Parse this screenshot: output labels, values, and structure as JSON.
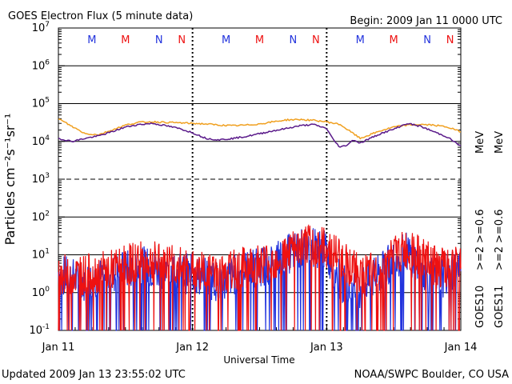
{
  "header": {
    "title": "GOES Electron Flux (5 minute data)",
    "begin": "Begin: 2009 Jan 11 0000 UTC"
  },
  "footer": {
    "updated": "Updated 2009 Jan 13 23:55:02 UTC",
    "credit": "NOAA/SWPC Boulder, CO USA"
  },
  "colors": {
    "goes10_low": "#2233dd",
    "goes10_high": "#5a1a8a",
    "goes11_low": "#ee1111",
    "goes11_high": "#f0a020"
  },
  "chart_data": {
    "type": "line",
    "title": "GOES Electron Flux (5 minute data)",
    "xlabel": "Universal Time",
    "ylabel": "Particles cm⁻²s⁻¹sr⁻¹",
    "y_scale": "log",
    "ylim": [
      0.1,
      10000000
    ],
    "x_ticks": [
      "Jan 11",
      "Jan 12",
      "Jan 13",
      "Jan 14"
    ],
    "y_ticks": [
      {
        "base": "10",
        "exp": "7"
      },
      {
        "base": "10",
        "exp": "6"
      },
      {
        "base": "10",
        "exp": "5"
      },
      {
        "base": "10",
        "exp": "4"
      },
      {
        "base": "10",
        "exp": "3"
      },
      {
        "base": "10",
        "exp": "2"
      },
      {
        "base": "10",
        "exp": "1"
      },
      {
        "base": "10",
        "exp": "0"
      },
      {
        "base": "10",
        "exp": "-1"
      }
    ],
    "grid": true,
    "legend_right": [
      {
        "satellite": "GOES10",
        "low": ">=2",
        "high": ">=0.6",
        "low_color": "#2233dd",
        "high_color": "#5a1a8a"
      },
      {
        "satellite": "GOES11",
        "low": ">=2",
        "high": ">=0.6",
        "low_color": "#ee1111",
        "high_color": "#f0a020"
      }
    ],
    "unit_label": "MeV",
    "mn_markers": [
      {
        "letter": "M",
        "day": 0.25,
        "color": "#2233dd"
      },
      {
        "letter": "M",
        "day": 0.5,
        "color": "#ee1111"
      },
      {
        "letter": "N",
        "day": 0.75,
        "color": "#2233dd"
      },
      {
        "letter": "N",
        "day": 0.92,
        "color": "#ee1111"
      },
      {
        "letter": "M",
        "day": 1.25,
        "color": "#2233dd"
      },
      {
        "letter": "M",
        "day": 1.5,
        "color": "#ee1111"
      },
      {
        "letter": "N",
        "day": 1.75,
        "color": "#2233dd"
      },
      {
        "letter": "N",
        "day": 1.92,
        "color": "#ee1111"
      },
      {
        "letter": "M",
        "day": 2.25,
        "color": "#2233dd"
      },
      {
        "letter": "M",
        "day": 2.5,
        "color": "#ee1111"
      },
      {
        "letter": "N",
        "day": 2.75,
        "color": "#2233dd"
      },
      {
        "letter": "N",
        "day": 2.92,
        "color": "#ee1111"
      }
    ],
    "series": [
      {
        "name": "GOES10 >=0.6 MeV",
        "color": "#5a1a8a",
        "x": [
          0,
          0.1,
          0.2,
          0.3,
          0.4,
          0.5,
          0.6,
          0.7,
          0.8,
          0.9,
          1.0,
          1.1,
          1.2,
          1.3,
          1.4,
          1.5,
          1.6,
          1.7,
          1.8,
          1.9,
          2.0,
          2.05,
          2.1,
          2.15,
          2.2,
          2.25,
          2.3,
          2.4,
          2.5,
          2.6,
          2.7,
          2.8,
          2.9,
          3.0
        ],
        "values": [
          12000,
          10000,
          12000,
          14000,
          18000,
          24000,
          28000,
          30000,
          26000,
          22000,
          17000,
          12000,
          11000,
          12000,
          13500,
          16000,
          19000,
          22000,
          26000,
          28000,
          22000,
          11000,
          7000,
          8000,
          11000,
          9000,
          11000,
          16000,
          21000,
          30000,
          25000,
          18000,
          13000,
          7500
        ]
      },
      {
        "name": "GOES11 >=0.6 MeV",
        "color": "#f0a020",
        "x": [
          0,
          0.1,
          0.2,
          0.3,
          0.4,
          0.5,
          0.6,
          0.7,
          0.8,
          0.9,
          1.0,
          1.1,
          1.2,
          1.3,
          1.4,
          1.5,
          1.6,
          1.7,
          1.8,
          1.9,
          2.0,
          2.1,
          2.2,
          2.25,
          2.3,
          2.4,
          2.5,
          2.6,
          2.7,
          2.8,
          2.9,
          3.0
        ],
        "values": [
          40000,
          25000,
          16000,
          15000,
          20000,
          27000,
          32000,
          33000,
          32000,
          31000,
          30000,
          29000,
          27000,
          26000,
          27000,
          29000,
          33000,
          37000,
          38000,
          36000,
          33000,
          28000,
          16000,
          12000,
          14000,
          19000,
          24000,
          27000,
          28000,
          27000,
          24000,
          18000
        ]
      },
      {
        "name": "GOES10 >=2 MeV",
        "color": "#2233dd",
        "x": [
          0,
          0.2,
          0.4,
          0.6,
          0.8,
          1.0,
          1.2,
          1.4,
          1.6,
          1.7,
          1.8,
          1.9,
          2.0,
          2.1,
          2.2,
          2.3,
          2.4,
          2.5,
          2.6,
          2.7,
          2.8,
          2.9,
          3.0
        ],
        "values": [
          3,
          2,
          3,
          5,
          4,
          3,
          2,
          4,
          6,
          10,
          14,
          17,
          12,
          2,
          1,
          2,
          3,
          8,
          12,
          5,
          2,
          3,
          4
        ]
      },
      {
        "name": "GOES11 >=2 MeV",
        "color": "#ee1111",
        "x": [
          0,
          0.2,
          0.4,
          0.6,
          0.8,
          1.0,
          1.2,
          1.4,
          1.6,
          1.7,
          1.8,
          1.9,
          2.0,
          2.1,
          2.2,
          2.3,
          2.4,
          2.5,
          2.6,
          2.7,
          2.8,
          2.9,
          3.0
        ],
        "values": [
          3,
          3,
          4,
          7,
          6,
          4,
          3,
          5,
          7,
          11,
          15,
          19,
          15,
          9,
          4,
          3,
          4,
          10,
          13,
          9,
          5,
          4,
          5
        ]
      }
    ]
  }
}
